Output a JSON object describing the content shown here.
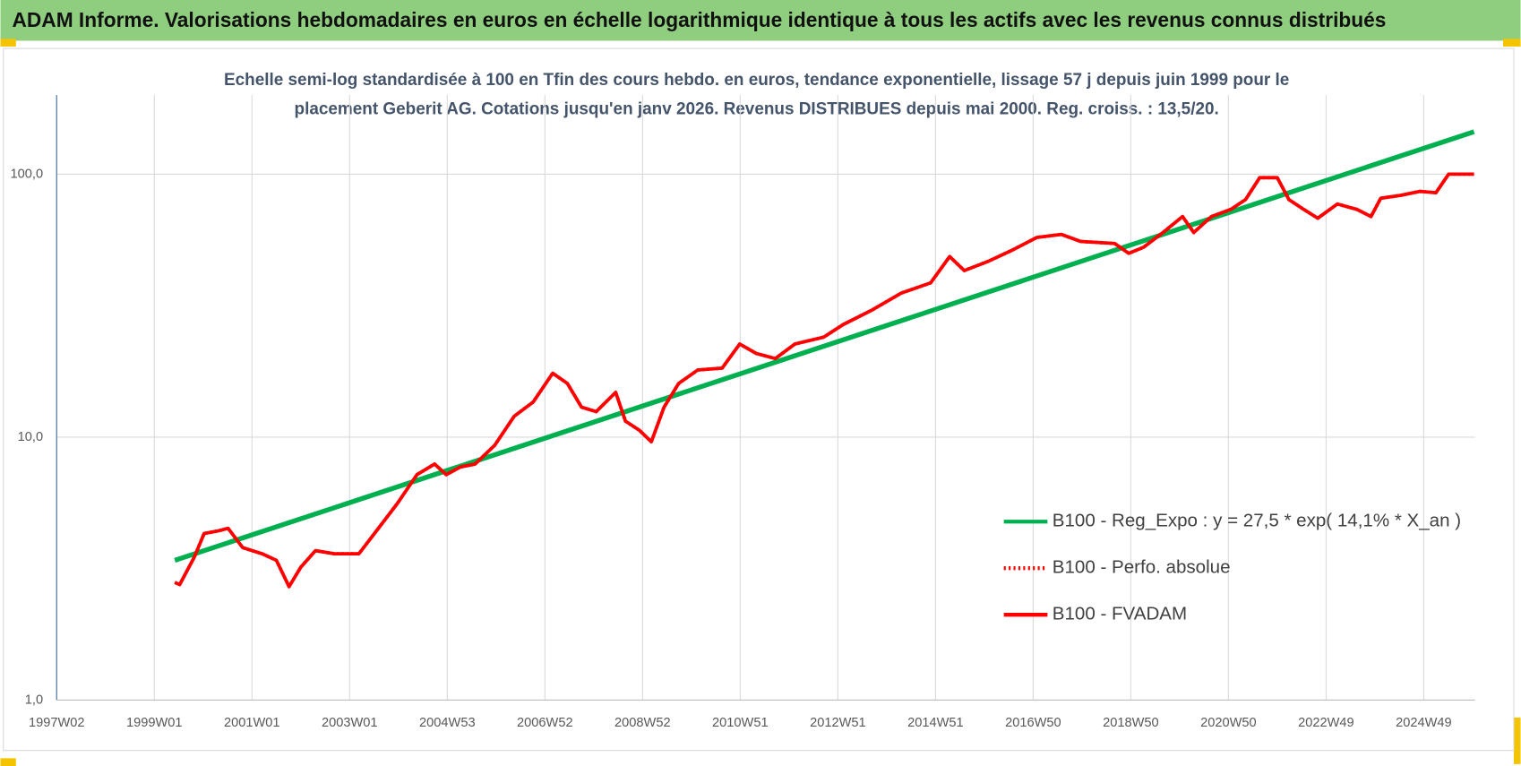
{
  "chart_data": {
    "type": "line",
    "title": "ADAM Informe. Valorisations hebdomadaires en euros en échelle logarithmique identique à tous les actifs avec les revenus connus distribués",
    "subtitle": [
      "Echelle semi-log standardisée à 100 en Tfin des cours hebdo. en euros, tendance exponentielle, lissage 57 j depuis juin 1999 pour le",
      "placement Geberit AG. Cotations jusqu'en janv 2026. Revenus DISTRIBUES depuis mai 2000. Reg. croiss. : 13,5/20."
    ],
    "log_y": true,
    "grid": true,
    "legend": "lower right",
    "xlim": [
      1997,
      2026.05
    ],
    "xticks": [
      {
        "value": 1997,
        "label": "1997W02"
      },
      {
        "value": 1999,
        "label": "1999W01"
      },
      {
        "value": 2001,
        "label": "2001W01"
      },
      {
        "value": 2003,
        "label": "2003W01"
      },
      {
        "value": 2005,
        "label": "2004W53"
      },
      {
        "value": 2007,
        "label": "2006W52"
      },
      {
        "value": 2009,
        "label": "2008W52"
      },
      {
        "value": 2011,
        "label": "2010W51"
      },
      {
        "value": 2013,
        "label": "2012W51"
      },
      {
        "value": 2015,
        "label": "2014W51"
      },
      {
        "value": 2017,
        "label": "2016W50"
      },
      {
        "value": 2019,
        "label": "2018W50"
      },
      {
        "value": 2021,
        "label": "2020W50"
      },
      {
        "value": 2023,
        "label": "2022W49"
      },
      {
        "value": 2025,
        "label": "2024W49"
      }
    ],
    "ylim": [
      1,
      200
    ],
    "yticks": [
      {
        "value": 1,
        "label": "1,0"
      },
      {
        "value": 10,
        "label": "10,0"
      },
      {
        "value": 100,
        "label": "100,0"
      }
    ],
    "series": [
      {
        "name": "B100 - Reg_Expo : y = 27,5 * exp( 14,1% *  X_an )",
        "color": "#00b050",
        "dash": "solid",
        "x": [
          1999.42,
          2026.03
        ],
        "values": [
          3.4,
          145
        ]
      },
      {
        "name": "B100 - Perfo. absolue",
        "color": "#ff0000",
        "dash": "dotted",
        "x": [
          1999.42,
          1999.52,
          1999.82,
          2000.02,
          2000.31,
          2000.51,
          2000.81,
          2001.21,
          2001.5,
          2001.76,
          2002.0,
          2002.3,
          2002.69,
          2003.19,
          2003.59,
          2003.98,
          2004.38,
          2004.74,
          2004.98,
          2005.27,
          2005.57,
          2005.97,
          2006.37,
          2006.76,
          2007.16,
          2007.46,
          2007.75,
          2008.05,
          2008.45,
          2008.65,
          2008.94,
          2009.18,
          2009.44,
          2009.74,
          2010.13,
          2010.63,
          2010.99,
          2011.33,
          2011.72,
          2012.12,
          2012.71,
          2013.11,
          2013.71,
          2014.3,
          2014.9,
          2015.29,
          2015.59,
          2016.09,
          2016.58,
          2017.08,
          2017.58,
          2017.97,
          2018.67,
          2018.96,
          2019.26,
          2019.66,
          2020.06,
          2020.29,
          2020.65,
          2021.05,
          2021.35,
          2021.64,
          2022.0,
          2022.24,
          2022.54,
          2022.83,
          2023.23,
          2023.63,
          2023.92,
          2024.12,
          2024.52,
          2024.92,
          2025.25,
          2025.51,
          2025.81,
          2026.03
        ],
        "values": [
          2.8,
          2.75,
          3.5,
          4.3,
          4.4,
          4.5,
          3.8,
          3.6,
          3.4,
          2.7,
          3.2,
          3.7,
          3.6,
          3.6,
          4.5,
          5.6,
          7.2,
          7.9,
          7.2,
          7.7,
          7.9,
          9.3,
          12,
          13.6,
          17.5,
          16,
          13,
          12.5,
          14.8,
          11.5,
          10.6,
          9.6,
          13,
          16,
          18,
          18.3,
          22.6,
          20.8,
          19.9,
          22.6,
          24,
          26.8,
          30.5,
          35.3,
          38.6,
          48.6,
          43,
          46.7,
          51.5,
          57.5,
          59,
          55.5,
          54.5,
          50,
          52.7,
          60,
          69,
          60,
          69,
          73.5,
          80,
          97,
          97,
          80,
          73.5,
          68,
          77,
          73.5,
          69,
          81,
          83,
          86,
          85,
          100,
          100,
          100
        ]
      },
      {
        "name": "B100 - FVADAM",
        "color": "#ff0000",
        "dash": "solid",
        "x": [
          1999.42,
          1999.52,
          1999.82,
          2000.02,
          2000.31,
          2000.51,
          2000.81,
          2001.21,
          2001.5,
          2001.76,
          2002.0,
          2002.3,
          2002.69,
          2003.19,
          2003.59,
          2003.98,
          2004.38,
          2004.74,
          2004.98,
          2005.27,
          2005.57,
          2005.97,
          2006.37,
          2006.76,
          2007.16,
          2007.46,
          2007.75,
          2008.05,
          2008.45,
          2008.65,
          2008.94,
          2009.18,
          2009.44,
          2009.74,
          2010.13,
          2010.63,
          2010.99,
          2011.33,
          2011.72,
          2012.12,
          2012.71,
          2013.11,
          2013.71,
          2014.3,
          2014.9,
          2015.29,
          2015.59,
          2016.09,
          2016.58,
          2017.08,
          2017.58,
          2017.97,
          2018.67,
          2018.96,
          2019.26,
          2019.66,
          2020.06,
          2020.29,
          2020.65,
          2021.05,
          2021.35,
          2021.64,
          2022.0,
          2022.24,
          2022.54,
          2022.83,
          2023.23,
          2023.63,
          2023.92,
          2024.12,
          2024.52,
          2024.92,
          2025.25,
          2025.51,
          2025.81,
          2026.03
        ],
        "values": [
          2.8,
          2.75,
          3.5,
          4.3,
          4.4,
          4.5,
          3.8,
          3.6,
          3.4,
          2.7,
          3.2,
          3.7,
          3.6,
          3.6,
          4.5,
          5.6,
          7.2,
          7.9,
          7.2,
          7.7,
          7.9,
          9.3,
          12,
          13.6,
          17.5,
          16,
          13,
          12.5,
          14.8,
          11.5,
          10.6,
          9.6,
          13,
          16,
          18,
          18.3,
          22.6,
          20.8,
          19.9,
          22.6,
          24,
          26.8,
          30.5,
          35.3,
          38.6,
          48.6,
          43,
          46.7,
          51.5,
          57.5,
          59,
          55.5,
          54.5,
          50,
          52.7,
          60,
          69,
          60,
          69,
          73.5,
          80,
          97,
          97,
          80,
          73.5,
          68,
          77,
          73.5,
          69,
          81,
          83,
          86,
          85,
          100,
          100,
          100
        ]
      }
    ]
  }
}
